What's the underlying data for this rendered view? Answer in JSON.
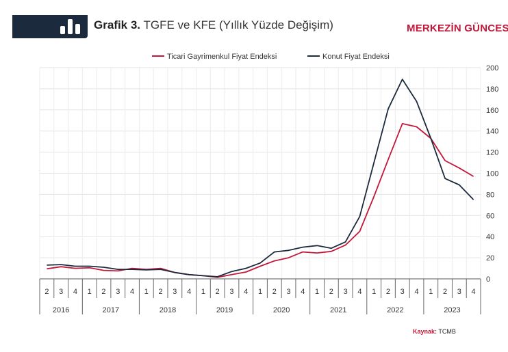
{
  "header": {
    "title_bold": "Grafik 3.",
    "title_rest": "TGFE ve KFE (Yıllık Yüzde Değişim)",
    "brand": "MERKEZİN GÜNCES",
    "logo_icon": "bar-chart-icon"
  },
  "source": {
    "label": "Kaynak:",
    "value": "TCMB"
  },
  "chart_data": {
    "type": "line",
    "quarters": [
      "2",
      "3",
      "4",
      "1",
      "2",
      "3",
      "4",
      "1",
      "2",
      "3",
      "4",
      "1",
      "2",
      "3",
      "4",
      "1",
      "2",
      "3",
      "4",
      "1",
      "2",
      "3",
      "4",
      "1",
      "2",
      "3",
      "4",
      "1",
      "2",
      "3",
      "4"
    ],
    "years": [
      {
        "label": "2016",
        "start": 0,
        "end": 2
      },
      {
        "label": "2017",
        "start": 3,
        "end": 6
      },
      {
        "label": "2018",
        "start": 7,
        "end": 10
      },
      {
        "label": "2019",
        "start": 11,
        "end": 14
      },
      {
        "label": "2020",
        "start": 15,
        "end": 18
      },
      {
        "label": "2021",
        "start": 19,
        "end": 22
      },
      {
        "label": "2022",
        "start": 23,
        "end": 26
      },
      {
        "label": "2023",
        "start": 27,
        "end": 30
      }
    ],
    "y_axis": {
      "min": 0,
      "max": 200,
      "step": 20,
      "ticks": [
        "0",
        "20",
        "40",
        "60",
        "80",
        "100",
        "120",
        "140",
        "160",
        "180",
        "200"
      ],
      "position": "right"
    },
    "grid": true,
    "legend_position": "top",
    "series": [
      {
        "name": "Ticari Gayrimenkul Fiyat Endeksi",
        "color": "#c2183a",
        "values": [
          9.5,
          11.5,
          10,
          10.5,
          8,
          7.5,
          10,
          9,
          10,
          6,
          4,
          3,
          1.5,
          4,
          6.5,
          12,
          17,
          20,
          25.5,
          24.5,
          26,
          32,
          45,
          78,
          113,
          147,
          144,
          133,
          112,
          105,
          97
        ]
      },
      {
        "name": "Konut Fiyat Endeksi",
        "color": "#1b2a3d",
        "values": [
          13,
          13.5,
          12,
          12,
          11,
          9,
          9,
          8.5,
          9,
          6,
          4,
          3,
          2,
          7,
          10,
          15,
          25.5,
          27,
          30,
          31.5,
          29,
          35,
          59,
          110,
          161,
          189,
          168,
          133,
          95,
          89,
          75
        ]
      }
    ]
  }
}
